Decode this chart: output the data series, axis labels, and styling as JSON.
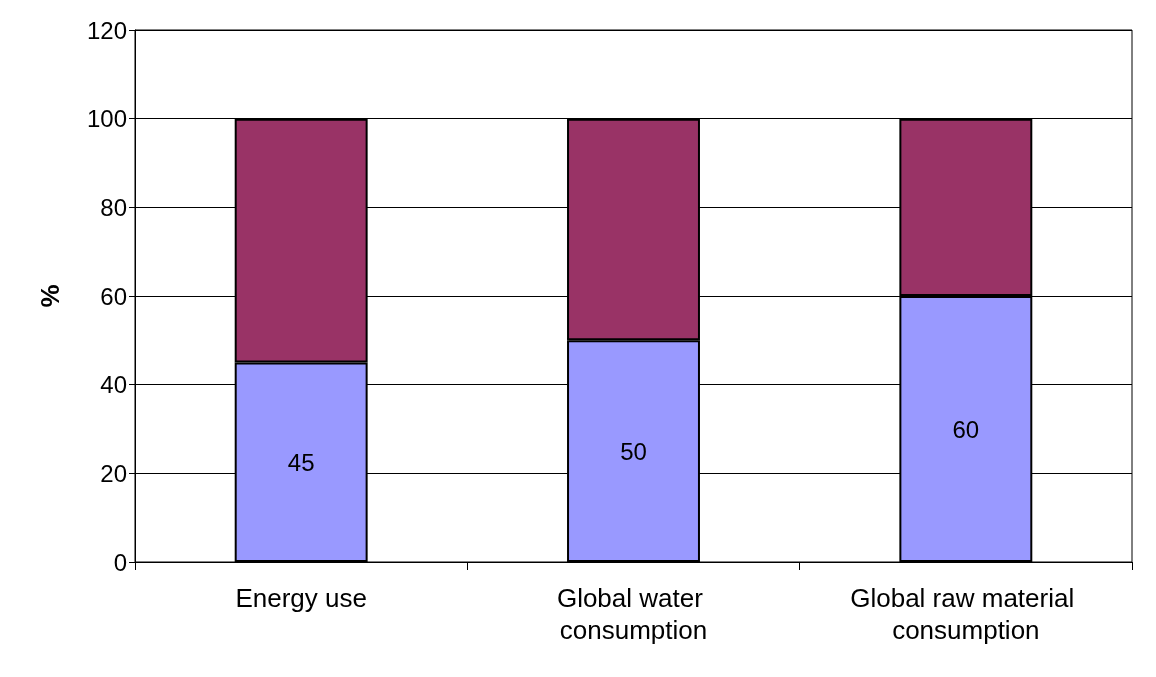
{
  "chart_data": {
    "type": "bar",
    "stacked": true,
    "ylabel": "%",
    "categories": [
      "Energy use",
      "Global water consumption",
      "Global raw material consumption"
    ],
    "series": [
      {
        "color": "#9999ff",
        "values": [
          45,
          50,
          60
        ],
        "value_labels": [
          "45",
          "50",
          "60"
        ]
      },
      {
        "color": "#993366",
        "values": [
          55,
          50,
          40
        ]
      }
    ],
    "ylim": [
      0,
      120
    ],
    "yticks": [
      0,
      20,
      40,
      60,
      80,
      100,
      120
    ],
    "grid": "y"
  }
}
